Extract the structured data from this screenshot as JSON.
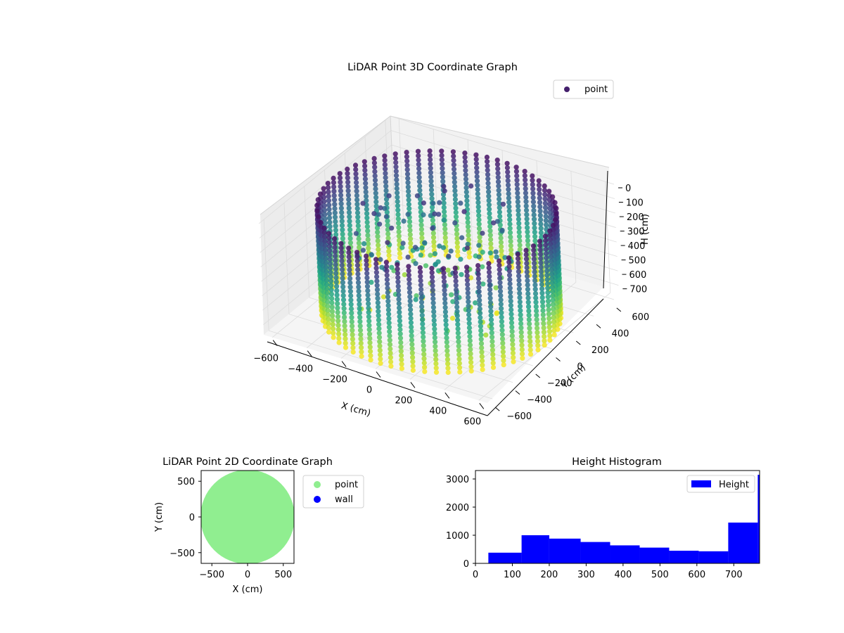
{
  "chart_data": [
    {
      "type": "scatter",
      "title": "LiDAR Point 3D Coordinate Graph",
      "xlabel": "X (cm)",
      "ylabel": "Y (cm)",
      "zlabel": "H (cm)",
      "xlim": [
        -650,
        650
      ],
      "ylim": [
        -650,
        650
      ],
      "zlim": [
        0,
        770
      ],
      "z_inverted": true,
      "x_ticks": [
        "−600",
        "−400",
        "−200",
        "0",
        "200",
        "400",
        "600"
      ],
      "y_ticks": [
        "−600",
        "−400",
        "−200",
        "0",
        "200",
        "400",
        "600"
      ],
      "z_ticks": [
        "0",
        "100",
        "200",
        "300",
        "400",
        "500",
        "600",
        "700"
      ],
      "legend": [
        "point"
      ],
      "legend_position": "upper right",
      "colormap": "viridis",
      "series": [
        {
          "name": "point",
          "description": "cylindrical wall of scan columns, radius about 600, heights 0 to 770",
          "color": "#3b1f6e"
        }
      ]
    },
    {
      "type": "scatter",
      "title": "LiDAR Point 2D Coordinate Graph",
      "xlabel": "X (cm)",
      "ylabel": "Y (cm)",
      "xlim": [
        -650,
        650
      ],
      "ylim": [
        -650,
        650
      ],
      "x_ticks": [
        "−500",
        "0",
        "500"
      ],
      "y_ticks": [
        "500",
        "0",
        "−500"
      ],
      "legend": [
        "point",
        "wall"
      ],
      "legend_position": "outside right",
      "series": [
        {
          "name": "point",
          "color": "#90ee90"
        },
        {
          "name": "wall",
          "color": "#0000ff"
        }
      ]
    },
    {
      "type": "bar",
      "title": "Height Histogram",
      "legend": [
        "Height"
      ],
      "legend_position": "upper right",
      "xlim": [
        0,
        770
      ],
      "ylim": [
        0,
        3300
      ],
      "x_ticks": [
        "0",
        "100",
        "200",
        "300",
        "400",
        "500",
        "600",
        "700"
      ],
      "y_ticks": [
        "0",
        "1000",
        "2000",
        "3000"
      ],
      "bins": [
        {
          "start": 35,
          "end": 125,
          "count": 380
        },
        {
          "start": 125,
          "end": 200,
          "count": 1000
        },
        {
          "start": 200,
          "end": 285,
          "count": 880
        },
        {
          "start": 285,
          "end": 365,
          "count": 760
        },
        {
          "start": 365,
          "end": 445,
          "count": 640
        },
        {
          "start": 445,
          "end": 525,
          "count": 560
        },
        {
          "start": 525,
          "end": 605,
          "count": 450
        },
        {
          "start": 605,
          "end": 685,
          "count": 430
        },
        {
          "start": 685,
          "end": 765,
          "count": 1450
        },
        {
          "start": 765,
          "end": 770,
          "count": 3150
        }
      ],
      "series": [
        {
          "name": "Height",
          "color": "#0000ff"
        }
      ]
    }
  ]
}
